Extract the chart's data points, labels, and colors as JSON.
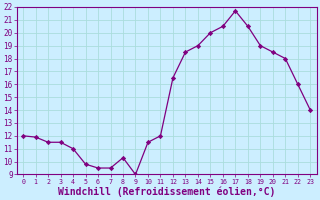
{
  "x": [
    0,
    1,
    2,
    3,
    4,
    5,
    6,
    7,
    8,
    9,
    10,
    11,
    12,
    13,
    14,
    15,
    16,
    17,
    18,
    19,
    20,
    21,
    22,
    23
  ],
  "y": [
    12.0,
    11.9,
    11.5,
    11.5,
    11.0,
    9.8,
    9.5,
    9.5,
    10.3,
    9.0,
    11.5,
    12.0,
    16.5,
    18.5,
    19.0,
    20.0,
    20.5,
    21.7,
    20.5,
    19.0,
    18.5,
    18.0,
    16.0,
    14.0
  ],
  "line_color": "#800080",
  "marker": "D",
  "marker_size": 2.2,
  "background_color": "#cceeff",
  "grid_color": "#aadddd",
  "xlabel": "Windchill (Refroidissement éolien,°C)",
  "xlabel_color": "#800080",
  "ylim": [
    9,
    22
  ],
  "xlim": [
    -0.5,
    23.5
  ],
  "yticks": [
    9,
    10,
    11,
    12,
    13,
    14,
    15,
    16,
    17,
    18,
    19,
    20,
    21,
    22
  ],
  "xticks": [
    0,
    1,
    2,
    3,
    4,
    5,
    6,
    7,
    8,
    9,
    10,
    11,
    12,
    13,
    14,
    15,
    16,
    17,
    18,
    19,
    20,
    21,
    22,
    23
  ],
  "tick_color": "#800080",
  "ytick_fontsize": 5.5,
  "xtick_fontsize": 4.8,
  "xlabel_fontsize": 7.0,
  "spine_color": "#800080",
  "linewidth": 0.9
}
